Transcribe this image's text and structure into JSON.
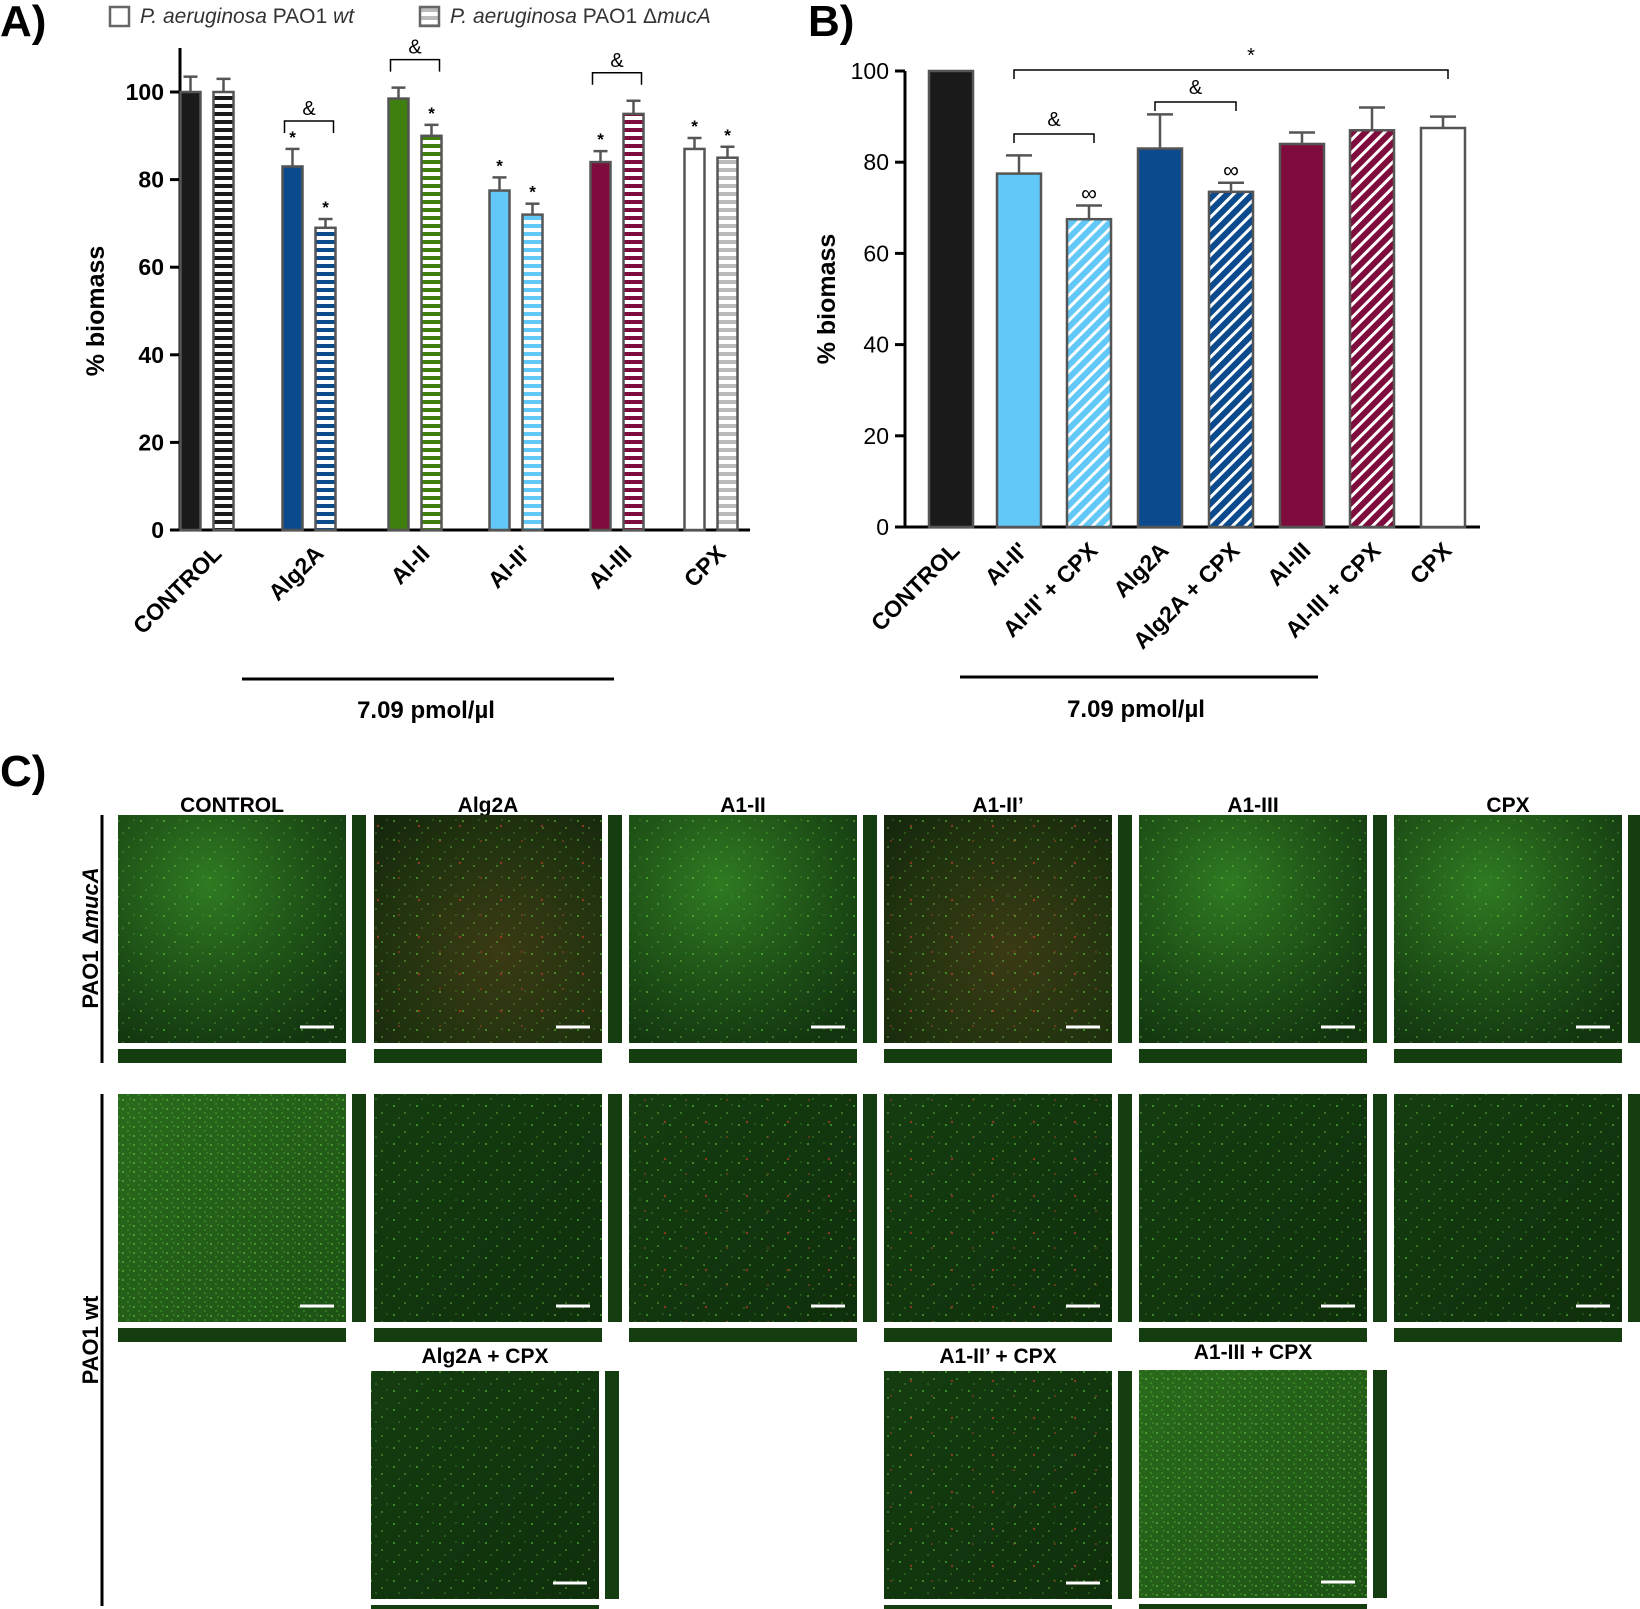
{
  "panels": {
    "a": {
      "letter": "A)"
    },
    "b": {
      "letter": "B)"
    },
    "c": {
      "letter": "C)"
    }
  },
  "legend": {
    "wt": {
      "species": "P. aeruginosa",
      "strain": " PAO1 ",
      "variant": "wt"
    },
    "muca": {
      "species": "P. aeruginosa",
      "strain": " PAO1 Δ",
      "variant": "mucA"
    }
  },
  "concentration_label": "7.09 pmol/µl",
  "colors": {
    "control": "#1a1a1a",
    "alg2a": "#0b4a8c",
    "a1_ii": "#3f7f0f",
    "a1_ii_prime": "#62c8f7",
    "a1_iii": "#7e0c3c",
    "cpx": "#ffffff",
    "outline": "#555555"
  },
  "chart_data": [
    {
      "panel": "A",
      "type": "bar",
      "ylabel": "% biomass",
      "xlabel": "",
      "ylim": [
        0,
        100
      ],
      "yticks": [
        "0",
        "20",
        "40",
        "60",
        "80",
        "100"
      ],
      "grid": false,
      "legend_position": "top",
      "categories": [
        "CONTROL",
        "Alg2A",
        "AI-II",
        "AI-II'",
        "AI-III",
        "CPX"
      ],
      "series": [
        {
          "name": "P. aeruginosa PAO1 wt",
          "pattern": "solid",
          "values": [
            100,
            83,
            98.5,
            77.5,
            84,
            87
          ],
          "errors": [
            3.5,
            4,
            2.5,
            3,
            2.5,
            2.5
          ],
          "significance": [
            "",
            "*",
            "",
            "*",
            "*",
            "*"
          ]
        },
        {
          "name": "P. aeruginosa PAO1 ΔmucA",
          "pattern": "horizontal-stripes",
          "values": [
            100,
            69,
            90,
            72,
            95,
            85
          ],
          "errors": [
            3,
            2,
            2.5,
            2.5,
            3,
            2.5
          ],
          "significance": [
            "",
            "*",
            "*",
            "*",
            "",
            "*"
          ]
        }
      ],
      "comparisons": [
        {
          "category": "Alg2A",
          "symbol": "&"
        },
        {
          "category": "AI-II",
          "symbol": "&"
        },
        {
          "category": "AI-III",
          "symbol": "&"
        }
      ],
      "bracket_label": "7.09 pmol/µl"
    },
    {
      "panel": "B",
      "type": "bar",
      "ylabel": "% biomass",
      "xlabel": "",
      "ylim": [
        0,
        100
      ],
      "yticks": [
        "0",
        "20",
        "40",
        "60",
        "80",
        "100"
      ],
      "grid": false,
      "categories": [
        "CONTROL",
        "AI-II'",
        "AI-II' + CPX",
        "Alg2A",
        "Alg2A + CPX",
        "AI-III",
        "AI-III + CPX",
        "CPX"
      ],
      "values": [
        100,
        77.5,
        67.5,
        83,
        73.5,
        84,
        87,
        87.5
      ],
      "errors": [
        0,
        4,
        3,
        7.5,
        2,
        2.5,
        5,
        2.5
      ],
      "patterns": [
        "solid",
        "solid",
        "diagonal",
        "solid",
        "diagonal",
        "solid",
        "diagonal",
        "solid"
      ],
      "markers": [
        "",
        "",
        "∞",
        "",
        "∞",
        "",
        "",
        ""
      ],
      "comparisons": [
        {
          "from": "AI-II'",
          "to": "AI-II' + CPX",
          "symbol": "&"
        },
        {
          "from": "Alg2A",
          "to": "Alg2A + CPX",
          "symbol": "&"
        },
        {
          "from": "AI-II'",
          "to": "CPX",
          "symbol": "*"
        }
      ],
      "bracket_label": "7.09 pmol/µl"
    }
  ],
  "microscopy": {
    "row_labels": {
      "muca": {
        "prefix": "PAO1 Δ",
        "italic": "mucA"
      },
      "wt": "PAO1 wt"
    },
    "columns": [
      "CONTROL",
      "Alg2A",
      "A1-II",
      "A1-II’",
      "A1-III",
      "CPX"
    ],
    "extra_columns": [
      "Alg2A + CPX",
      "A1-II’ + CPX",
      "A1-III + CPX"
    ]
  }
}
